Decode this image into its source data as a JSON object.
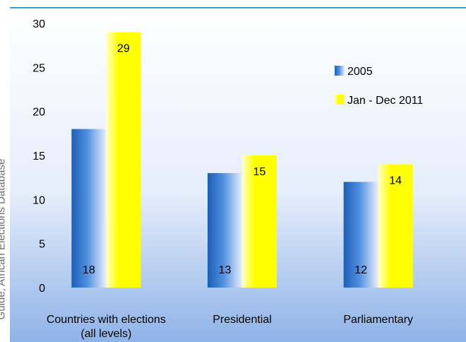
{
  "source_note": "Guide, African Elections Database",
  "chart_data": {
    "type": "bar",
    "categories": [
      [
        "Countries with elections",
        "(all levels)"
      ],
      [
        "Presidential"
      ],
      [
        "Parliamentary"
      ]
    ],
    "series": [
      {
        "name": "2005",
        "values": [
          18,
          13,
          12
        ],
        "color": "#2a70c8"
      },
      {
        "name": "Jan - Dec 2011",
        "values": [
          29,
          15,
          14
        ],
        "color": "#ffff00"
      }
    ],
    "title": "",
    "xlabel": "",
    "ylabel": "",
    "ylim": [
      0,
      30
    ],
    "yticks": [
      0,
      5,
      10,
      15,
      20,
      25,
      30
    ],
    "grid": false,
    "legend_position": "right",
    "background_color": "#a9c5ee",
    "accent_color": "#2ea6c8"
  }
}
